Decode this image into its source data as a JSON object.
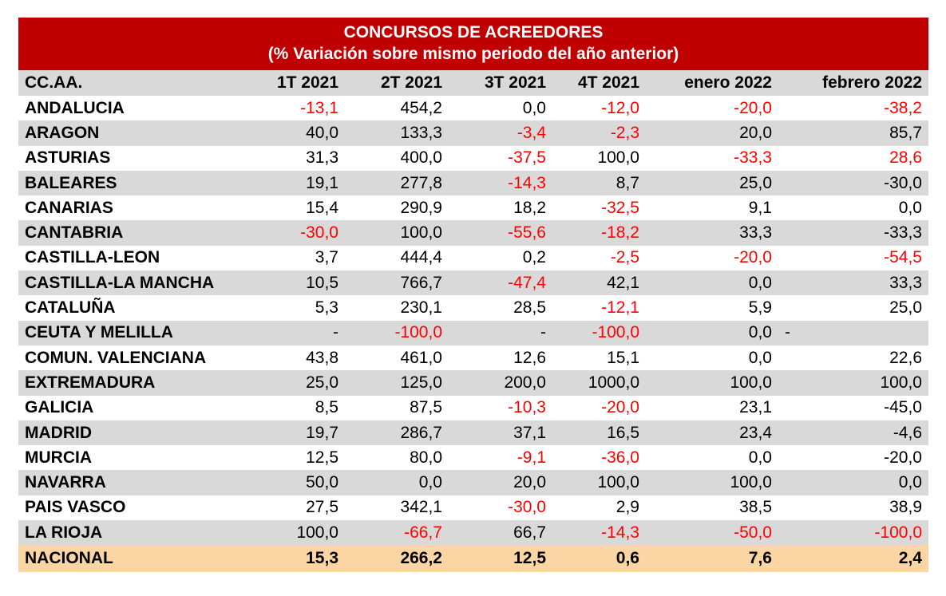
{
  "title": "CONCURSOS DE ACREEDORES",
  "subtitle": "(%  Variación sobre mismo periodo del año anterior)",
  "columns": [
    "CC.AA.",
    "1T 2021",
    "2T 2021",
    "3T 2021",
    "4T 2021",
    "enero 2022",
    "febrero 2022"
  ],
  "rows": [
    {
      "name": "ANDALUCIA",
      "values": [
        "-13,1",
        "454,2",
        "0,0",
        "-12,0",
        "-20,0",
        "-38,2"
      ],
      "red": [
        true,
        false,
        false,
        true,
        true,
        true
      ]
    },
    {
      "name": "ARAGON",
      "values": [
        "40,0",
        "133,3",
        "-3,4",
        "-2,3",
        "20,0",
        "85,7"
      ],
      "red": [
        false,
        false,
        true,
        true,
        false,
        false
      ]
    },
    {
      "name": "ASTURIAS",
      "values": [
        "31,3",
        "400,0",
        "-37,5",
        "100,0",
        "-33,3",
        "28,6"
      ],
      "red": [
        false,
        false,
        true,
        false,
        true,
        true
      ]
    },
    {
      "name": "BALEARES",
      "values": [
        "19,1",
        "277,8",
        "-14,3",
        "8,7",
        "25,0",
        "-30,0"
      ],
      "red": [
        false,
        false,
        true,
        false,
        false,
        false
      ]
    },
    {
      "name": "CANARIAS",
      "values": [
        "15,4",
        "290,9",
        "18,2",
        "-32,5",
        "9,1",
        "0,0"
      ],
      "red": [
        false,
        false,
        false,
        true,
        false,
        false
      ]
    },
    {
      "name": "CANTABRIA",
      "values": [
        "-30,0",
        "100,0",
        "-55,6",
        "-18,2",
        "33,3",
        "-33,3"
      ],
      "red": [
        true,
        false,
        true,
        true,
        false,
        false
      ]
    },
    {
      "name": "CASTILLA-LEON",
      "values": [
        "3,7",
        "444,4",
        "0,2",
        "-2,5",
        "-20,0",
        "-54,5"
      ],
      "red": [
        false,
        false,
        false,
        true,
        true,
        true
      ]
    },
    {
      "name": "CASTILLA-LA MANCHA",
      "values": [
        "10,5",
        "766,7",
        "-47,4",
        "42,1",
        "0,0",
        "33,3"
      ],
      "red": [
        false,
        false,
        true,
        false,
        false,
        false
      ]
    },
    {
      "name": "CATALUÑA",
      "values": [
        "5,3",
        "230,1",
        "28,5",
        "-12,1",
        "5,9",
        "25,0"
      ],
      "red": [
        false,
        false,
        false,
        true,
        false,
        false
      ]
    },
    {
      "name": "CEUTA Y MELILLA",
      "values": [
        "-",
        "-100,0",
        "-",
        "-100,0",
        "0,0",
        "-"
      ],
      "red": [
        false,
        true,
        false,
        true,
        false,
        false
      ],
      "left_align_last": true
    },
    {
      "name": "COMUN. VALENCIANA",
      "values": [
        "43,8",
        "461,0",
        "12,6",
        "15,1",
        "0,0",
        "22,6"
      ],
      "red": [
        false,
        false,
        false,
        false,
        false,
        false
      ]
    },
    {
      "name": "EXTREMADURA",
      "values": [
        "25,0",
        "125,0",
        "200,0",
        "1000,0",
        "100,0",
        "100,0"
      ],
      "red": [
        false,
        false,
        false,
        false,
        false,
        false
      ]
    },
    {
      "name": "GALICIA",
      "values": [
        "8,5",
        "87,5",
        "-10,3",
        "-20,0",
        "23,1",
        "-45,0"
      ],
      "red": [
        false,
        false,
        true,
        true,
        false,
        false
      ]
    },
    {
      "name": "MADRID",
      "values": [
        "19,7",
        "286,7",
        "37,1",
        "16,5",
        "23,4",
        "-4,6"
      ],
      "red": [
        false,
        false,
        false,
        false,
        false,
        false
      ]
    },
    {
      "name": "MURCIA",
      "values": [
        "12,5",
        "80,0",
        "-9,1",
        "-36,0",
        "0,0",
        "-20,0"
      ],
      "red": [
        false,
        false,
        true,
        true,
        false,
        false
      ]
    },
    {
      "name": "NAVARRA",
      "values": [
        "50,0",
        "0,0",
        "20,0",
        "100,0",
        "100,0",
        "0,0"
      ],
      "red": [
        false,
        false,
        false,
        false,
        false,
        false
      ]
    },
    {
      "name": "PAIS VASCO",
      "values": [
        "27,5",
        "342,1",
        "-30,0",
        "2,9",
        "38,5",
        "38,9"
      ],
      "red": [
        false,
        false,
        true,
        false,
        false,
        false
      ]
    },
    {
      "name": "LA RIOJA",
      "values": [
        "100,0",
        "-66,7",
        "66,7",
        "-14,3",
        "-50,0",
        "-100,0"
      ],
      "red": [
        false,
        true,
        false,
        true,
        true,
        true
      ]
    }
  ],
  "total": {
    "name": "NACIONAL",
    "values": [
      "15,3",
      "266,2",
      "12,5",
      "0,6",
      "7,6",
      "2,4"
    ]
  },
  "colors": {
    "header_red": "#c00000",
    "stripe_gray": "#d9d9d9",
    "total_bg": "#fcd5a4",
    "negative_red": "#ff0000"
  }
}
